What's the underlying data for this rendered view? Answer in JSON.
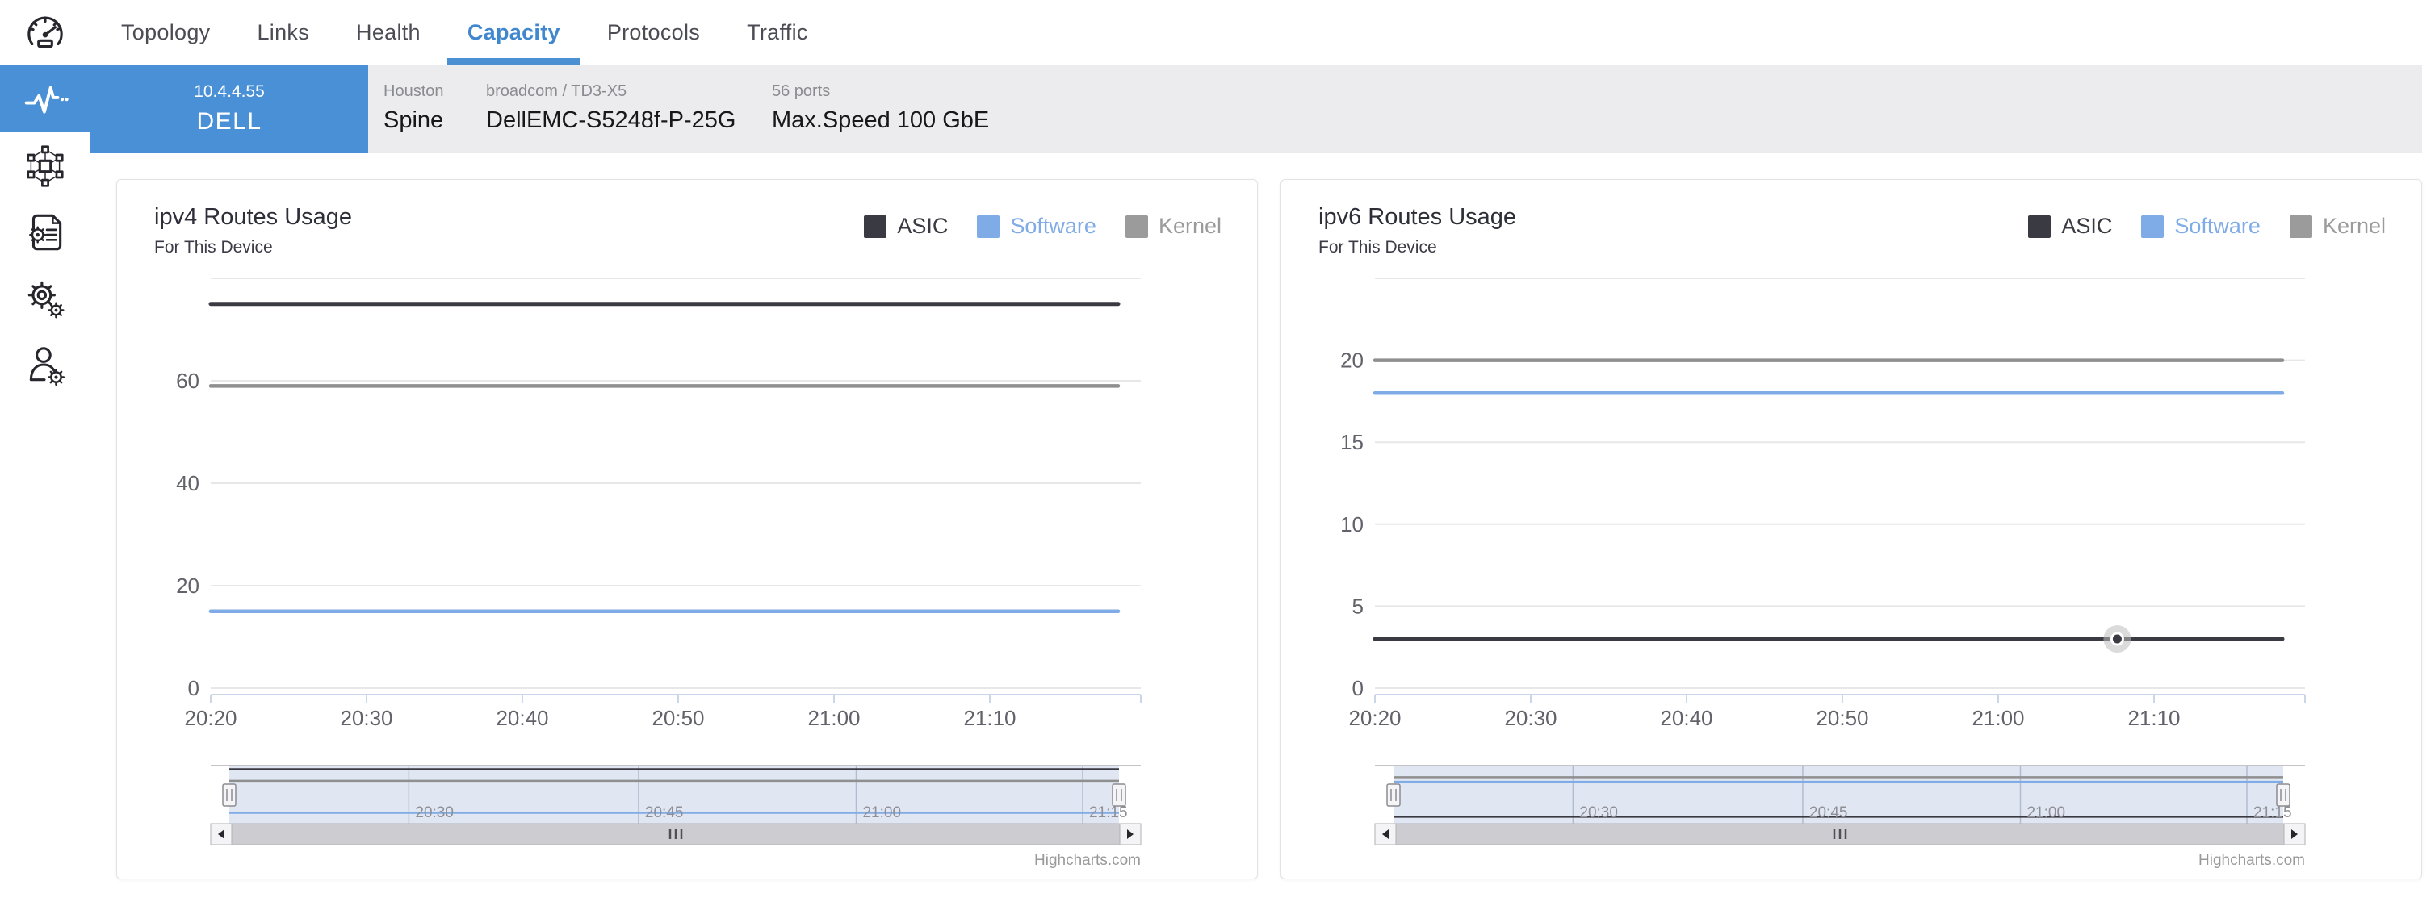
{
  "nav": {
    "tabs": [
      {
        "label": "Topology",
        "active": false
      },
      {
        "label": "Links",
        "active": false
      },
      {
        "label": "Health",
        "active": false
      },
      {
        "label": "Capacity",
        "active": true
      },
      {
        "label": "Protocols",
        "active": false
      },
      {
        "label": "Traffic",
        "active": false
      }
    ]
  },
  "sidebar": {
    "icons": [
      "gauge-logo-icon",
      "activity-pulse-icon",
      "topology-mesh-icon",
      "document-gear-icon",
      "settings-gears-icon",
      "user-gear-icon"
    ],
    "active_icon": "activity-pulse-icon",
    "active_color": "#4a90d6"
  },
  "device_bar": {
    "ip": "10.4.4.55",
    "name": "DELL",
    "fields": [
      {
        "label": "Houston",
        "value": "Spine"
      },
      {
        "label": "broadcom / TD3-X5",
        "value": "DellEMC-S5248f-P-25G"
      },
      {
        "label": "56 ports",
        "value": "Max.Speed 100 GbE"
      }
    ]
  },
  "colors": {
    "accent": "#4a90d6",
    "asic": "#3a3a42",
    "software": "#7fabe6",
    "kernel": "#9b9b9b",
    "gridline": "#e7e7e9",
    "axis_line": "#ccd6eb",
    "axis_label": "#62626a"
  },
  "chart_data": [
    {
      "type": "line",
      "title": "ipv4 Routes Usage",
      "subtitle": "For This Device",
      "legend": [
        {
          "label": "ASIC",
          "color": "#3a3a42"
        },
        {
          "label": "Software",
          "color": "#7fabe6"
        },
        {
          "label": "Kernel",
          "color": "#9b9b9b"
        }
      ],
      "x_labels": [
        "20:20",
        "20:30",
        "20:40",
        "20:50",
        "21:00",
        "21:10"
      ],
      "y_axis": {
        "max": 80,
        "tick_interval": 20,
        "labeled_ticks": [
          0,
          20,
          40,
          60
        ]
      },
      "series": [
        {
          "name": "ASIC",
          "value": 75,
          "color": "#3a3a42",
          "width": 5
        },
        {
          "name": "Kernel",
          "value": 59,
          "color": "#8f8f8f",
          "width": 4.5
        },
        {
          "name": "Software",
          "value": 15,
          "color": "#7fabe6",
          "width": 4.5
        }
      ],
      "navigator_labels": [
        "20:30",
        "20:45",
        "21:00",
        "21:15"
      ],
      "credits": "Highcharts.com"
    },
    {
      "type": "line",
      "title": "ipv6 Routes Usage",
      "subtitle": "For This Device",
      "legend": [
        {
          "label": "ASIC",
          "color": "#3a3a42"
        },
        {
          "label": "Software",
          "color": "#7fabe6"
        },
        {
          "label": "Kernel",
          "color": "#9b9b9b"
        }
      ],
      "x_labels": [
        "20:20",
        "20:30",
        "20:40",
        "20:50",
        "21:00",
        "21:10"
      ],
      "y_axis": {
        "max": 25,
        "tick_interval": 5,
        "labeled_ticks": [
          0,
          5,
          10,
          15,
          20
        ]
      },
      "series": [
        {
          "name": "Kernel",
          "value": 20,
          "color": "#8f8f8f",
          "width": 4.5
        },
        {
          "name": "Software",
          "value": 18,
          "color": "#7fabe6",
          "width": 4.5
        },
        {
          "name": "ASIC",
          "value": 3,
          "color": "#3a3a42",
          "width": 5,
          "marker_frac": 0.818
        }
      ],
      "navigator_labels": [
        "20:30",
        "20:45",
        "21:00",
        "21:15"
      ],
      "credits": "Highcharts.com"
    }
  ]
}
